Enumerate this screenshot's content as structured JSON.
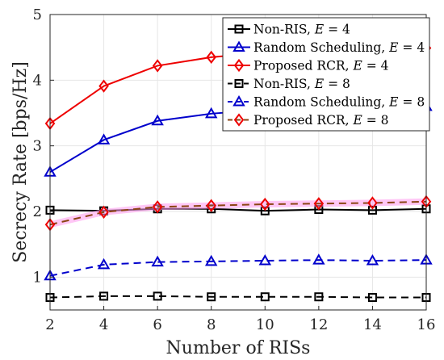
{
  "chart_data": {
    "type": "line",
    "xlabel": "Number of RISs",
    "ylabel": "Secrecy Rate [bps/Hz]",
    "xlim": [
      2,
      16
    ],
    "ylim": [
      0.5,
      5
    ],
    "x_ticks": [
      2,
      4,
      6,
      8,
      10,
      12,
      14,
      16
    ],
    "y_ticks": [
      1,
      2,
      3,
      4,
      5
    ],
    "grid": true,
    "legend_position": "top-right",
    "x": [
      2,
      4,
      6,
      8,
      10,
      12,
      14,
      16
    ],
    "series": [
      {
        "name": "Non-RIS, E = 4",
        "label_text": "Non-RIS, ",
        "label_var": "E",
        "label_eq": " = 4",
        "color": "#000000",
        "marker": "square",
        "dash": "solid",
        "values": [
          2.02,
          2.01,
          2.04,
          2.04,
          2.01,
          2.03,
          2.02,
          2.04
        ]
      },
      {
        "name": "Random Scheduling, E = 4",
        "label_text": "Random Scheduling, ",
        "label_var": "E",
        "label_eq": " = 4",
        "color": "#0000cc",
        "marker": "triangle",
        "dash": "solid",
        "values": [
          2.6,
          3.09,
          3.38,
          3.49,
          3.55,
          3.58,
          3.59,
          3.6
        ]
      },
      {
        "name": "Proposed RCR, E = 4",
        "label_text": "Proposed RCR, ",
        "label_var": "E",
        "label_eq": " = 4",
        "color": "#ee0000",
        "marker": "diamond",
        "dash": "solid",
        "values": [
          3.34,
          3.91,
          4.22,
          4.35,
          4.42,
          4.45,
          4.47,
          4.49
        ]
      },
      {
        "name": "Non-RIS, E = 8",
        "label_text": "Non-RIS, ",
        "label_var": "E",
        "label_eq": " = 8",
        "color": "#000000",
        "marker": "square",
        "dash": "dashed",
        "values": [
          0.69,
          0.71,
          0.71,
          0.7,
          0.7,
          0.7,
          0.69,
          0.69
        ]
      },
      {
        "name": "Random Scheduling, E = 8",
        "label_text": "Random Scheduling, ",
        "label_var": "E",
        "label_eq": " = 8",
        "color": "#0000cc",
        "marker": "triangle",
        "dash": "dashed",
        "values": [
          1.02,
          1.19,
          1.23,
          1.24,
          1.25,
          1.26,
          1.25,
          1.26
        ]
      },
      {
        "name": "Proposed RCR, E = 8",
        "label_text": "Proposed RCR, ",
        "label_var": "E",
        "label_eq": " = 8",
        "color": "#ee0000",
        "marker": "diamond",
        "dash": "dashed",
        "line_color": "#8b4513",
        "highlight": "#ff99ee",
        "values": [
          1.8,
          1.99,
          2.07,
          2.09,
          2.11,
          2.12,
          2.13,
          2.15
        ]
      }
    ]
  }
}
